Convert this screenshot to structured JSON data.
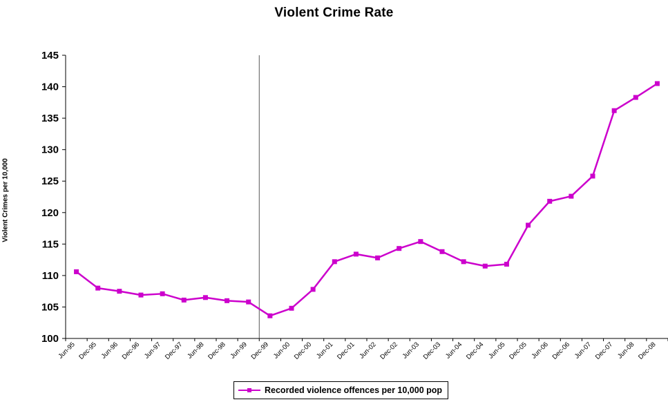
{
  "chart_data": {
    "type": "line",
    "title": "Violent Crime Rate",
    "ylabel": "Violent Crimes per 10,000",
    "xlabel": "",
    "ylim": [
      100,
      145
    ],
    "yticks": [
      100,
      105,
      110,
      115,
      120,
      125,
      130,
      135,
      140,
      145
    ],
    "categories": [
      "Jun-95",
      "Dec-95",
      "Jun-96",
      "Dec-96",
      "Jun-97",
      "Dec-97",
      "Jun-98",
      "Dec-98",
      "Jun-99",
      "Dec-99",
      "Jun-00",
      "Dec-00",
      "Jun-01",
      "Dec-01",
      "Jun-02",
      "Dec-02",
      "Jun-03",
      "Dec-03",
      "Jun-04",
      "Dec-04",
      "Jun-05",
      "Dec-05",
      "Jun-06",
      "Dec-06",
      "Jun-07",
      "Dec-07",
      "Jun-08",
      "Dec-08"
    ],
    "series": [
      {
        "name": "Recorded violence offences per 10,000 pop",
        "color": "#cc00cc",
        "values": [
          110.6,
          108.0,
          107.5,
          106.9,
          107.1,
          106.1,
          106.5,
          106.0,
          105.8,
          103.6,
          104.8,
          107.8,
          112.2,
          113.4,
          112.8,
          114.3,
          115.4,
          113.8,
          112.2,
          111.5,
          111.8,
          118.0,
          121.8,
          122.6,
          125.8,
          136.2,
          138.3,
          140.5
        ]
      }
    ],
    "vertical_marker_after": "Dec-99",
    "legend_position": "bottom",
    "grid": false
  }
}
